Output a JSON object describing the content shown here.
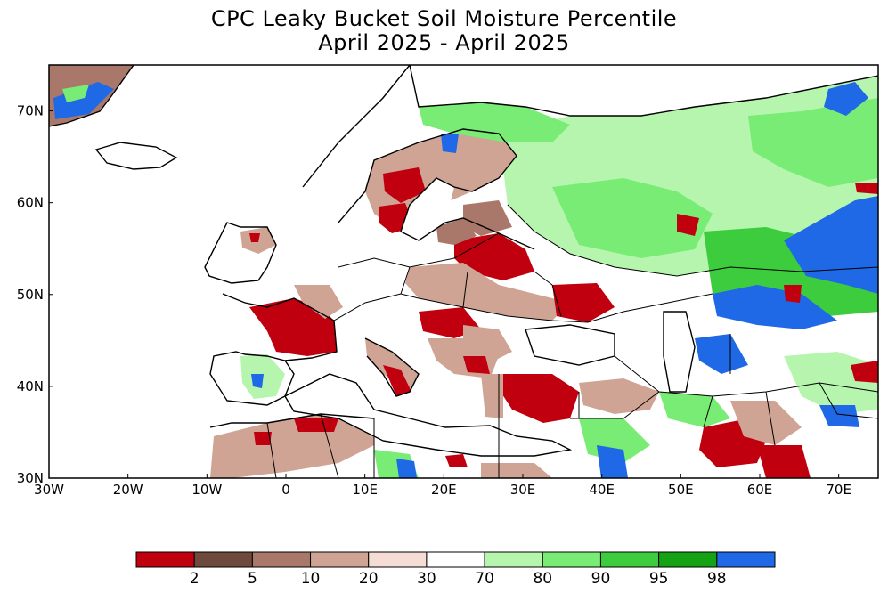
{
  "title_line1": "CPC Leaky Bucket Soil Moisture Percentile",
  "title_line2": "April 2025 - April 2025",
  "map": {
    "lon_range": [
      -30,
      75
    ],
    "lat_range": [
      30,
      75
    ],
    "x_ticks": [
      {
        "lon": -30,
        "label": "30W"
      },
      {
        "lon": -20,
        "label": "20W"
      },
      {
        "lon": -10,
        "label": "10W"
      },
      {
        "lon": 0,
        "label": "0"
      },
      {
        "lon": 10,
        "label": "10E"
      },
      {
        "lon": 20,
        "label": "20E"
      },
      {
        "lon": 30,
        "label": "30E"
      },
      {
        "lon": 40,
        "label": "40E"
      },
      {
        "lon": 50,
        "label": "50E"
      },
      {
        "lon": 60,
        "label": "60E"
      },
      {
        "lon": 70,
        "label": "70E"
      }
    ],
    "y_ticks": [
      {
        "lat": 30,
        "label": "30N"
      },
      {
        "lat": 40,
        "label": "40N"
      },
      {
        "lat": 50,
        "label": "50N"
      },
      {
        "lat": 60,
        "label": "60N"
      },
      {
        "lat": 70,
        "label": "70N"
      }
    ]
  },
  "legend": {
    "colors": [
      "#c0000f",
      "#6e4a3c",
      "#a9786b",
      "#cfa494",
      "#f5dcd4",
      "#ffffff",
      "#b6f5ad",
      "#78ec74",
      "#3dcc3d",
      "#15a315",
      "#1f68e6"
    ],
    "labels": [
      "2",
      "5",
      "10",
      "20",
      "30",
      "70",
      "80",
      "90",
      "95",
      "98"
    ]
  }
}
